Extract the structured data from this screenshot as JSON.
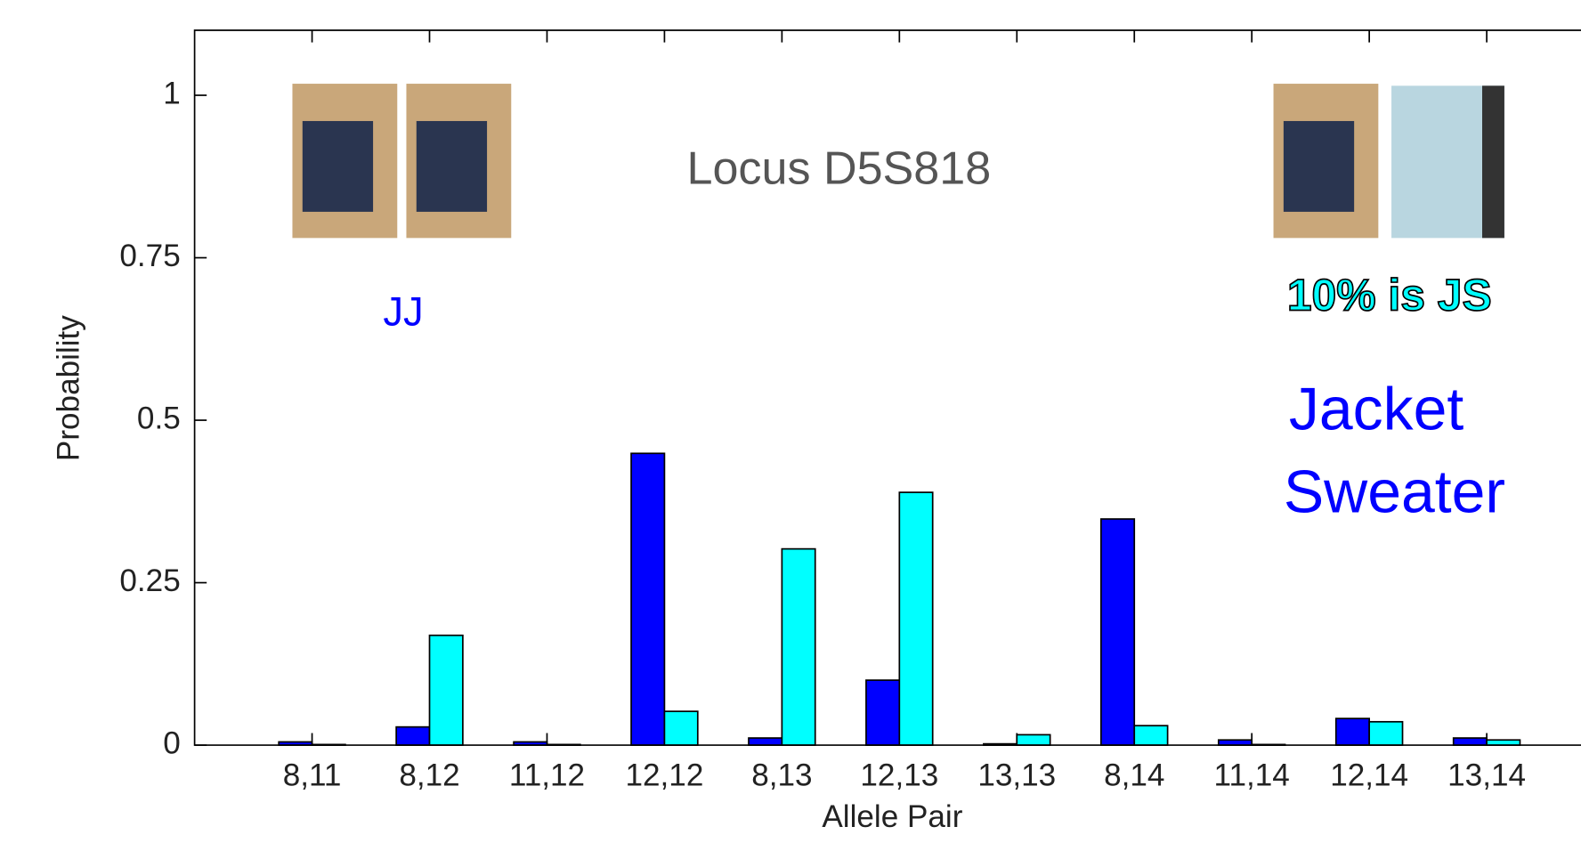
{
  "chart_data": {
    "type": "bar",
    "title": "Locus D5S818",
    "x_label": "Allele Pair",
    "y_label": "Probability",
    "categories": [
      "8,11",
      "8,12",
      "11,12",
      "12,12",
      "8,13",
      "12,13",
      "13,13",
      "8,14",
      "11,14",
      "12,14",
      "13,14"
    ],
    "series": [
      {
        "name": "JJ",
        "color": "#0000ff",
        "values": [
          0.005,
          0.028,
          0.005,
          0.449,
          0.011,
          0.1,
          0.002,
          0.348,
          0.008,
          0.041,
          0.011
        ]
      },
      {
        "name": "10% is JS",
        "color": "#00ffff",
        "values": [
          0.001,
          0.169,
          0.001,
          0.052,
          0.302,
          0.389,
          0.016,
          0.03,
          0.001,
          0.036,
          0.008
        ]
      }
    ],
    "annotations": [
      "Jacket",
      "Sweater"
    ],
    "ylim": [
      0,
      1.1
    ],
    "yticks": [
      0,
      0.25,
      0.5,
      0.75,
      1
    ],
    "grid": false
  }
}
